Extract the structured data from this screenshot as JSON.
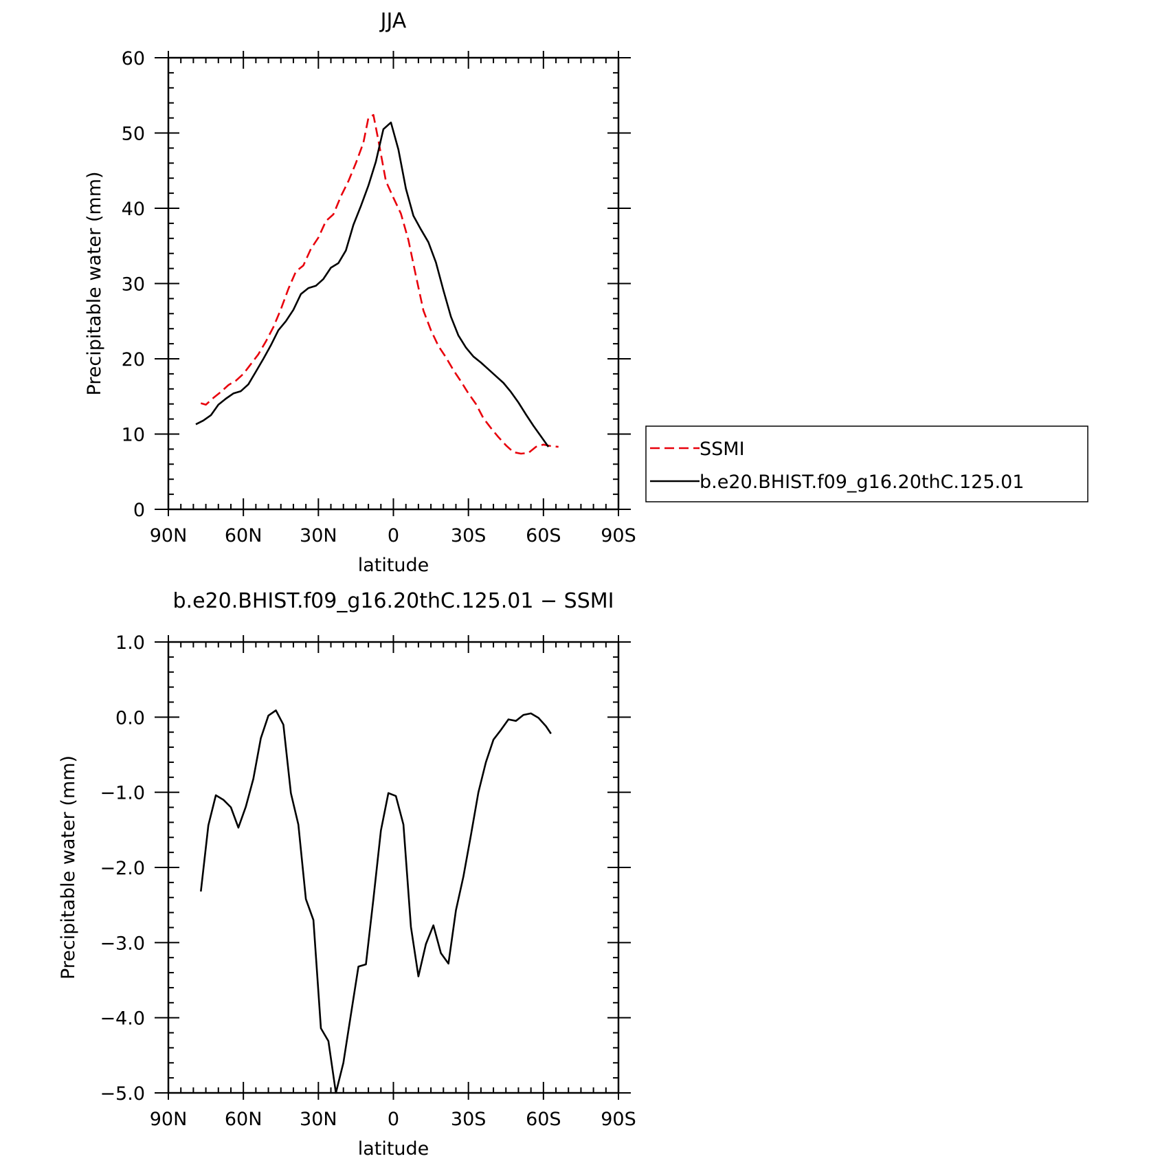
{
  "chart_data": [
    {
      "type": "line",
      "title": "JJA",
      "xlabel": "latitude",
      "ylabel": "Precipitable water (mm)",
      "xlim": [
        90,
        -90
      ],
      "ylim": [
        0,
        60
      ],
      "xticks": [
        90,
        60,
        30,
        0,
        -30,
        -60,
        -90
      ],
      "xtick_labels": [
        "90N",
        "60N",
        "30N",
        "0",
        "30S",
        "60S",
        "90S"
      ],
      "yticks": [
        0,
        10,
        20,
        30,
        40,
        50,
        60
      ],
      "ytick_labels": [
        "0",
        "10",
        "20",
        "30",
        "40",
        "50",
        "60"
      ],
      "legend_position": "right",
      "series": [
        {
          "name": "SSMI",
          "color": "#e8000b",
          "dash": "dashed",
          "x": [
            77,
            75,
            72,
            69,
            66,
            63,
            60,
            57,
            54,
            51,
            48,
            45,
            42,
            39,
            36,
            33,
            30,
            27,
            24,
            21,
            18,
            15,
            12,
            10,
            8,
            6,
            3,
            0,
            -3,
            -6,
            -9,
            -12,
            -15,
            -18,
            -21,
            -24,
            -27,
            -30,
            -33,
            -36,
            -39,
            -42,
            -45,
            -48,
            -51,
            -54,
            -57,
            -60,
            -63,
            -66
          ],
          "y": [
            14.1,
            13.9,
            14.8,
            15.6,
            16.5,
            17.1,
            18.0,
            19.3,
            20.6,
            22.3,
            24.2,
            26.6,
            29.3,
            31.6,
            32.4,
            34.6,
            36.1,
            38.3,
            39.2,
            41.6,
            43.6,
            46.0,
            48.7,
            52.0,
            52.4,
            49.0,
            43.6,
            41.4,
            39.3,
            35.8,
            31.0,
            26.4,
            23.8,
            21.7,
            20.2,
            18.5,
            17.0,
            15.4,
            14.0,
            12.1,
            10.8,
            9.6,
            8.5,
            7.6,
            7.4,
            7.5,
            8.3,
            8.6,
            8.4,
            8.3
          ]
        },
        {
          "name": "b.e20.BHIST.f09_g16.20thC.125.01",
          "color": "#000000",
          "dash": "solid",
          "x": [
            79,
            76,
            73,
            70,
            67,
            64,
            61,
            58,
            55,
            52,
            49,
            46,
            43,
            40,
            37,
            34,
            31,
            28,
            25,
            22,
            19,
            16,
            13,
            10,
            7,
            4,
            1,
            -2,
            -5,
            -8,
            -11,
            -14,
            -17,
            -20,
            -23,
            -26,
            -29,
            -32,
            -35,
            -38,
            -41,
            -44,
            -47,
            -50,
            -53,
            -56,
            -59,
            -62
          ],
          "y": [
            11.3,
            11.8,
            12.5,
            13.9,
            14.7,
            15.4,
            15.7,
            16.6,
            18.3,
            20.0,
            21.8,
            23.8,
            25.0,
            26.5,
            28.6,
            29.4,
            29.7,
            30.6,
            32.1,
            32.7,
            34.4,
            37.8,
            40.3,
            43.0,
            46.2,
            50.5,
            51.4,
            47.8,
            42.6,
            39.0,
            37.2,
            35.5,
            32.8,
            29.1,
            25.6,
            23.1,
            21.5,
            20.3,
            19.5,
            18.6,
            17.7,
            16.8,
            15.6,
            14.2,
            12.6,
            11.1,
            9.7,
            8.3
          ]
        }
      ]
    },
    {
      "type": "line",
      "title": "b.e20.BHIST.f09_g16.20thC.125.01 − SSMI",
      "xlabel": "latitude",
      "ylabel": "Precipitable water (mm)",
      "xlim": [
        90,
        -90
      ],
      "ylim": [
        -5,
        1
      ],
      "xticks": [
        90,
        60,
        30,
        0,
        -30,
        -60,
        -90
      ],
      "xtick_labels": [
        "90N",
        "60N",
        "30N",
        "0",
        "30S",
        "60S",
        "90S"
      ],
      "yticks": [
        1,
        0,
        -1,
        -2,
        -3,
        -4,
        -5
      ],
      "ytick_labels": [
        "1.0",
        "0.0",
        "−1.0",
        "−2.0",
        "−3.0",
        "−4.0",
        "−5.0"
      ],
      "series": [
        {
          "name": "",
          "color": "#000000",
          "dash": "solid",
          "x": [
            77,
            74,
            71,
            68,
            65,
            62,
            59,
            56,
            53,
            50,
            47,
            44,
            41,
            38,
            35,
            32,
            29,
            26,
            23,
            20,
            17,
            14,
            11,
            8,
            5,
            2,
            -1,
            -4,
            -7,
            -10,
            -13,
            -16,
            -19,
            -22,
            -25,
            -28,
            -31,
            -34,
            -37,
            -40,
            -43,
            -46,
            -49,
            -52,
            -55,
            -58,
            -61,
            -63
          ],
          "y": [
            -2.32,
            -1.44,
            -1.04,
            -1.1,
            -1.2,
            -1.47,
            -1.19,
            -0.82,
            -0.28,
            0.02,
            0.09,
            -0.1,
            -1.01,
            -1.43,
            -2.42,
            -2.7,
            -4.14,
            -4.31,
            -5.0,
            -4.6,
            -3.96,
            -3.32,
            -3.29,
            -2.42,
            -1.51,
            -1.01,
            -1.05,
            -1.43,
            -2.79,
            -3.45,
            -3.02,
            -2.77,
            -3.14,
            -3.28,
            -2.57,
            -2.12,
            -1.57,
            -1.0,
            -0.6,
            -0.3,
            -0.17,
            -0.03,
            -0.05,
            0.03,
            0.05,
            -0.01,
            -0.12,
            -0.22
          ]
        }
      ]
    }
  ]
}
